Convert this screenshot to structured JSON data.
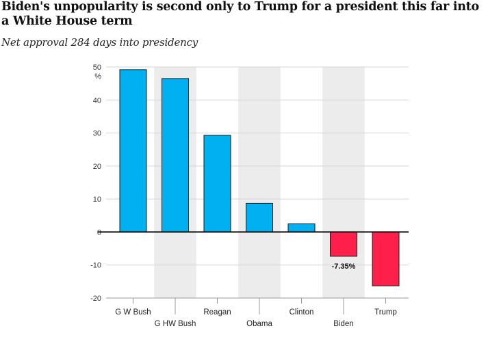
{
  "title": "Biden's unpopularity is second only to Trump for a president this far into a White House term",
  "subtitle": "Net approval 284 days into presidency",
  "colors": {
    "positive": "#00b0f0",
    "negative": "#ff1f4b",
    "band": "#ececec"
  },
  "chart_data": {
    "type": "bar",
    "title": "Biden's unpopularity is second only to Trump for a president this far into a White House term",
    "subtitle": "Net approval 284 days into presidency",
    "unit": "%",
    "categories": [
      "G W Bush",
      "G HW Bush",
      "Reagan",
      "Obama",
      "Clinton",
      "Biden",
      "Trump"
    ],
    "values": [
      49.2,
      46.5,
      29.3,
      8.7,
      2.5,
      -7.35,
      -16.3
    ],
    "data_labels": {
      "Biden": "-7.35%"
    },
    "yticks": [
      50,
      40,
      30,
      20,
      10,
      0,
      -10,
      -20
    ],
    "ylim": [
      -20,
      50
    ],
    "grid": true,
    "legend": "none"
  }
}
